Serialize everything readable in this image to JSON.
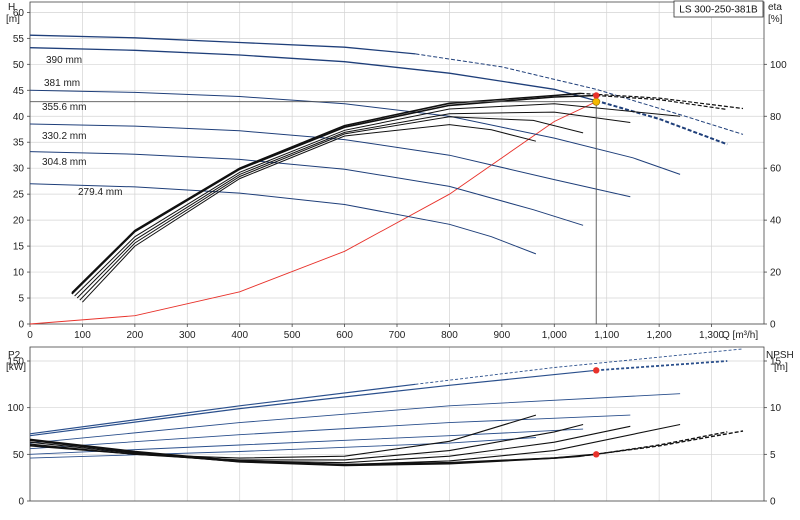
{
  "chart_data": [
    {
      "panel": "head-efficiency",
      "type": "line",
      "title": "LS 300-250-381B",
      "xlabel": "Q [m³/h]",
      "xlim": [
        0,
        1400
      ],
      "x_ticks": [
        0,
        100,
        200,
        300,
        400,
        500,
        600,
        700,
        800,
        900,
        1000,
        1100,
        1200,
        1300
      ],
      "x_tick_labels": [
        "0",
        "100",
        "200",
        "300",
        "400",
        "500",
        "600",
        "700",
        "800",
        "900",
        "1,000",
        "1,100",
        "1,200",
        "1,300"
      ],
      "ylabel_left": [
        "H",
        "[m]"
      ],
      "ylim_left": [
        0,
        62
      ],
      "y_ticks_left": [
        0,
        5,
        10,
        15,
        20,
        25,
        30,
        35,
        40,
        45,
        50,
        55,
        60
      ],
      "ylabel_right": [
        "eta",
        "[%]"
      ],
      "ylim_right": [
        0,
        124
      ],
      "y_ticks_right": [
        0,
        20,
        40,
        60,
        80,
        100
      ],
      "grid": true,
      "head_curves": [
        {
          "label": "390 mm",
          "solid": [
            [
              0,
              55.6
            ],
            [
              200,
              55.1
            ],
            [
              400,
              54.2
            ],
            [
              600,
              53.3
            ],
            [
              735,
              52.0
            ]
          ],
          "dashed": [
            [
              735,
              52.0
            ],
            [
              900,
              49.5
            ],
            [
              1080,
              45.2
            ],
            [
              1250,
              40.0
            ],
            [
              1360,
              36.5
            ]
          ]
        },
        {
          "label": "381 mm",
          "solid": [
            [
              0,
              53.2
            ],
            [
              200,
              52.7
            ],
            [
              400,
              51.8
            ],
            [
              600,
              50.5
            ],
            [
              800,
              48.3
            ],
            [
              1000,
              45.2
            ],
            [
              1080,
              43.0
            ]
          ],
          "dashed": [
            [
              1080,
              43.0
            ],
            [
              1200,
              39.5
            ],
            [
              1330,
              34.6
            ]
          ]
        },
        {
          "label": "355.6 mm",
          "solid": [
            [
              0,
              45.0
            ],
            [
              200,
              44.6
            ],
            [
              400,
              43.8
            ],
            [
              600,
              42.4
            ],
            [
              800,
              40.0
            ],
            [
              1000,
              35.8
            ],
            [
              1150,
              32.0
            ],
            [
              1240,
              28.8
            ]
          ]
        },
        {
          "label": "330.2 mm",
          "solid": [
            [
              0,
              38.5
            ],
            [
              200,
              38.1
            ],
            [
              400,
              37.2
            ],
            [
              600,
              35.5
            ],
            [
              800,
              32.5
            ],
            [
              1000,
              27.8
            ],
            [
              1145,
              24.5
            ]
          ]
        },
        {
          "label": "304.8 mm",
          "solid": [
            [
              0,
              33.2
            ],
            [
              200,
              32.7
            ],
            [
              400,
              31.7
            ],
            [
              600,
              29.8
            ],
            [
              800,
              26.5
            ],
            [
              960,
              22.0
            ],
            [
              1055,
              19.0
            ]
          ]
        },
        {
          "label": "279.4 mm",
          "solid": [
            [
              0,
              27.0
            ],
            [
              200,
              26.4
            ],
            [
              400,
              25.2
            ],
            [
              600,
              23.0
            ],
            [
              800,
              19.2
            ],
            [
              880,
              16.8
            ],
            [
              965,
              13.5
            ]
          ]
        }
      ],
      "system_curve": {
        "color": "#e8322b",
        "points": [
          [
            0,
            0
          ],
          [
            200,
            1.6
          ],
          [
            400,
            6.2
          ],
          [
            600,
            14.0
          ],
          [
            800,
            25.0
          ],
          [
            1000,
            39.0
          ],
          [
            1080,
            42.8
          ]
        ]
      },
      "efficiency_curves": [
        {
          "label": "390 mm",
          "solid": [
            [
              80,
              6
            ],
            [
              200,
              18
            ],
            [
              400,
              30
            ],
            [
              600,
              38.2
            ],
            [
              800,
              42.5
            ],
            [
              1000,
              44.0
            ],
            [
              1050,
              44.4
            ]
          ],
          "dashed": [
            [
              1050,
              44.4
            ],
            [
              1200,
              43.5
            ],
            [
              1360,
              41.5
            ]
          ]
        },
        {
          "label": "381 mm",
          "solid": [
            [
              80,
              5.8
            ],
            [
              200,
              17.8
            ],
            [
              400,
              29.8
            ],
            [
              600,
              37.9
            ],
            [
              800,
              42.1
            ],
            [
              1000,
              43.7
            ],
            [
              1080,
              44.0
            ]
          ],
          "dashed": [
            [
              1080,
              44.0
            ],
            [
              1200,
              43.2
            ],
            [
              1330,
              41.3
            ]
          ]
        },
        {
          "label": "355.6 mm",
          "solid": [
            [
              85,
              5.4
            ],
            [
              200,
              16.8
            ],
            [
              400,
              29.2
            ],
            [
              600,
              37.3
            ],
            [
              800,
              41.4
            ],
            [
              1000,
              42.4
            ],
            [
              1240,
              40.0
            ]
          ]
        },
        {
          "label": "330.2 mm",
          "solid": [
            [
              90,
              5.0
            ],
            [
              200,
              16.2
            ],
            [
              400,
              28.8
            ],
            [
              600,
              36.9
            ],
            [
              800,
              40.5
            ],
            [
              1000,
              40.8
            ],
            [
              1145,
              38.8
            ]
          ]
        },
        {
          "label": "304.8 mm",
          "solid": [
            [
              95,
              4.6
            ],
            [
              200,
              15.6
            ],
            [
              400,
              28.4
            ],
            [
              600,
              36.6
            ],
            [
              800,
              39.9
            ],
            [
              960,
              39.2
            ],
            [
              1055,
              36.8
            ]
          ]
        },
        {
          "label": "279.4 mm",
          "solid": [
            [
              100,
              4.2
            ],
            [
              200,
              15.0
            ],
            [
              400,
              28.0
            ],
            [
              600,
              36.2
            ],
            [
              800,
              38.4
            ],
            [
              880,
              37.4
            ],
            [
              965,
              35.2
            ]
          ]
        }
      ],
      "duty_point": {
        "Q": 1080,
        "H": 42.8,
        "eta": 44.0,
        "head_marker_color": "#f5b800",
        "eta_marker_color": "#e8322b"
      }
    },
    {
      "panel": "power-npsh",
      "type": "line",
      "xlim": [
        0,
        1400
      ],
      "ylabel_left": [
        "P2",
        "[kW]"
      ],
      "ylim_left": [
        0,
        165
      ],
      "y_ticks_left": [
        0,
        50,
        100,
        150
      ],
      "ylabel_right": [
        "NPSH",
        "[m]"
      ],
      "ylim_right": [
        0,
        16.5
      ],
      "y_ticks_right": [
        0,
        5,
        10,
        15
      ],
      "grid": true,
      "power_curves": [
        {
          "label": "390 mm",
          "solid": [
            [
              0,
              72
            ],
            [
              400,
              102
            ],
            [
              735,
              125
            ]
          ],
          "dashed": [
            [
              735,
              125
            ],
            [
              1000,
              143
            ],
            [
              1360,
              163
            ]
          ]
        },
        {
          "label": "381 mm",
          "solid": [
            [
              0,
              70
            ],
            [
              400,
              99
            ],
            [
              800,
              124
            ],
            [
              1080,
              140
            ]
          ],
          "dashed": [
            [
              1080,
              140
            ],
            [
              1330,
              150
            ]
          ]
        },
        {
          "label": "355.6 mm",
          "solid": [
            [
              0,
              62
            ],
            [
              400,
              84
            ],
            [
              800,
              102
            ],
            [
              1240,
              115
            ]
          ]
        },
        {
          "label": "330.2 mm",
          "solid": [
            [
              0,
              56
            ],
            [
              400,
              71
            ],
            [
              800,
              84
            ],
            [
              1145,
              92
            ]
          ]
        },
        {
          "label": "304.8 mm",
          "solid": [
            [
              0,
              50
            ],
            [
              400,
              60
            ],
            [
              800,
              70
            ],
            [
              1055,
              77
            ]
          ]
        },
        {
          "label": "279.4 mm",
          "solid": [
            [
              0,
              46
            ],
            [
              400,
              53
            ],
            [
              800,
              62
            ],
            [
              965,
              68
            ]
          ]
        }
      ],
      "npsh_curves": [
        {
          "label": "390 mm",
          "solid": [
            [
              0,
              6.6
            ],
            [
              200,
              5.3
            ],
            [
              400,
              4.3
            ],
            [
              600,
              3.9
            ],
            [
              800,
              4.1
            ],
            [
              1000,
              4.6
            ],
            [
              1050,
              4.8
            ]
          ],
          "dashed": [
            [
              1050,
              4.8
            ],
            [
              1200,
              5.9
            ],
            [
              1360,
              7.5
            ]
          ]
        },
        {
          "label": "381 mm",
          "solid": [
            [
              0,
              6.5
            ],
            [
              200,
              5.2
            ],
            [
              400,
              4.2
            ],
            [
              600,
              3.8
            ],
            [
              800,
              4.0
            ],
            [
              1000,
              4.6
            ],
            [
              1080,
              5.0
            ]
          ],
          "dashed": [
            [
              1080,
              5.0
            ],
            [
              1200,
              6.0
            ],
            [
              1330,
              7.4
            ]
          ]
        },
        {
          "label": "355.6 mm",
          "solid": [
            [
              0,
              6.3
            ],
            [
              200,
              5.1
            ],
            [
              400,
              4.2
            ],
            [
              600,
              3.9
            ],
            [
              800,
              4.3
            ],
            [
              1000,
              5.4
            ],
            [
              1240,
              8.2
            ]
          ]
        },
        {
          "label": "330.2 mm",
          "solid": [
            [
              0,
              6.1
            ],
            [
              200,
              5.0
            ],
            [
              400,
              4.3
            ],
            [
              600,
              4.1
            ],
            [
              800,
              4.8
            ],
            [
              1000,
              6.3
            ],
            [
              1145,
              8.0
            ]
          ]
        },
        {
          "label": "304.8 mm",
          "solid": [
            [
              0,
              6.0
            ],
            [
              200,
              5.0
            ],
            [
              400,
              4.4
            ],
            [
              600,
              4.4
            ],
            [
              800,
              5.4
            ],
            [
              1000,
              7.4
            ],
            [
              1055,
              8.2
            ]
          ]
        },
        {
          "label": "279.4 mm",
          "solid": [
            [
              0,
              5.9
            ],
            [
              200,
              5.0
            ],
            [
              400,
              4.6
            ],
            [
              600,
              4.8
            ],
            [
              800,
              6.4
            ],
            [
              965,
              9.2
            ]
          ]
        }
      ],
      "duty_point": {
        "Q": 1080,
        "P2": 140,
        "NPSH": 5.0,
        "marker_color": "#e8322b"
      }
    }
  ],
  "colors": {
    "head_curve": "#1f3f7a",
    "eta_curve": "#111111",
    "power_curve": "#2a4f8c",
    "npsh_curve": "#111111",
    "system_curve": "#e8322b",
    "grid": "#d4d4d4"
  }
}
